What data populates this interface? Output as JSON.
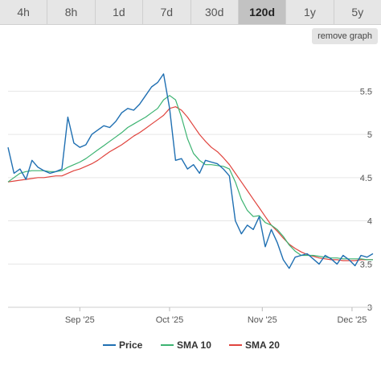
{
  "ranges": {
    "tabs": [
      {
        "label": "4h",
        "active": false
      },
      {
        "label": "8h",
        "active": false
      },
      {
        "label": "1d",
        "active": false
      },
      {
        "label": "7d",
        "active": false
      },
      {
        "label": "30d",
        "active": false
      },
      {
        "label": "120d",
        "active": true
      },
      {
        "label": "1y",
        "active": false
      },
      {
        "label": "5y",
        "active": false
      }
    ]
  },
  "remove_graph_label": "remove graph",
  "chart_data": {
    "type": "line",
    "title": "",
    "xlabel": "",
    "ylabel": "",
    "x_ticks": [
      {
        "label": "Sep '25",
        "value": "2025-09-01"
      },
      {
        "label": "Oct '25",
        "value": "2025-10-01"
      },
      {
        "label": "Nov '25",
        "value": "2025-11-01"
      },
      {
        "label": "Dec '25",
        "value": "2025-12-01"
      }
    ],
    "xlim": [
      "2025-08-08",
      "2025-12-08"
    ],
    "y_ticks": [
      "3",
      "3.5",
      "4",
      "4.5",
      "5",
      "5.5"
    ],
    "ylim": [
      3,
      5.95
    ],
    "grid": true,
    "legend_position": "bottom",
    "x": [
      "2025-08-08",
      "2025-08-10",
      "2025-08-12",
      "2025-08-14",
      "2025-08-16",
      "2025-08-18",
      "2025-08-20",
      "2025-08-22",
      "2025-08-24",
      "2025-08-26",
      "2025-08-28",
      "2025-08-30",
      "2025-09-01",
      "2025-09-03",
      "2025-09-05",
      "2025-09-07",
      "2025-09-09",
      "2025-09-11",
      "2025-09-13",
      "2025-09-15",
      "2025-09-17",
      "2025-09-19",
      "2025-09-21",
      "2025-09-23",
      "2025-09-25",
      "2025-09-27",
      "2025-09-29",
      "2025-10-01",
      "2025-10-03",
      "2025-10-05",
      "2025-10-07",
      "2025-10-09",
      "2025-10-11",
      "2025-10-13",
      "2025-10-15",
      "2025-10-17",
      "2025-10-19",
      "2025-10-21",
      "2025-10-23",
      "2025-10-25",
      "2025-10-27",
      "2025-10-29",
      "2025-10-31",
      "2025-11-02",
      "2025-11-04",
      "2025-11-06",
      "2025-11-08",
      "2025-11-10",
      "2025-11-12",
      "2025-11-14",
      "2025-11-16",
      "2025-11-18",
      "2025-11-20",
      "2025-11-22",
      "2025-11-24",
      "2025-11-26",
      "2025-11-28",
      "2025-11-30",
      "2025-12-02",
      "2025-12-04",
      "2025-12-06",
      "2025-12-08"
    ],
    "series": [
      {
        "name": "Price",
        "color": "#1f6fb2",
        "values": [
          4.85,
          4.55,
          4.6,
          4.48,
          4.7,
          4.62,
          4.58,
          4.55,
          4.57,
          4.6,
          5.2,
          4.9,
          4.85,
          4.88,
          5.0,
          5.05,
          5.1,
          5.08,
          5.15,
          5.25,
          5.3,
          5.28,
          5.35,
          5.45,
          5.55,
          5.6,
          5.7,
          5.3,
          4.7,
          4.72,
          4.6,
          4.65,
          4.55,
          4.7,
          4.68,
          4.66,
          4.6,
          4.52,
          4.0,
          3.85,
          3.95,
          3.9,
          4.05,
          3.7,
          3.9,
          3.75,
          3.55,
          3.45,
          3.58,
          3.6,
          3.62,
          3.56,
          3.5,
          3.6,
          3.56,
          3.5,
          3.6,
          3.55,
          3.48,
          3.6,
          3.58,
          3.62
        ]
      },
      {
        "name": "SMA 10",
        "color": "#3cb371",
        "values": [
          4.45,
          4.5,
          4.55,
          4.57,
          4.58,
          4.58,
          4.58,
          4.57,
          4.57,
          4.58,
          4.62,
          4.65,
          4.68,
          4.72,
          4.77,
          4.82,
          4.87,
          4.92,
          4.97,
          5.02,
          5.08,
          5.12,
          5.16,
          5.2,
          5.25,
          5.3,
          5.4,
          5.45,
          5.4,
          5.2,
          4.95,
          4.78,
          4.7,
          4.65,
          4.65,
          4.64,
          4.63,
          4.6,
          4.45,
          4.25,
          4.12,
          4.05,
          4.06,
          3.98,
          3.95,
          3.9,
          3.82,
          3.72,
          3.65,
          3.6,
          3.6,
          3.6,
          3.59,
          3.58,
          3.57,
          3.57,
          3.56,
          3.56,
          3.56,
          3.56,
          3.55,
          3.55
        ]
      },
      {
        "name": "SMA 20",
        "color": "#e0443e",
        "values": [
          4.45,
          4.46,
          4.47,
          4.48,
          4.49,
          4.5,
          4.5,
          4.51,
          4.52,
          4.52,
          4.55,
          4.58,
          4.6,
          4.63,
          4.66,
          4.7,
          4.75,
          4.8,
          4.84,
          4.88,
          4.93,
          4.98,
          5.02,
          5.07,
          5.12,
          5.17,
          5.22,
          5.3,
          5.32,
          5.28,
          5.2,
          5.1,
          5.0,
          4.92,
          4.85,
          4.8,
          4.73,
          4.65,
          4.55,
          4.45,
          4.35,
          4.25,
          4.15,
          4.05,
          3.95,
          3.88,
          3.8,
          3.73,
          3.68,
          3.64,
          3.61,
          3.59,
          3.57,
          3.56,
          3.55,
          3.55,
          3.54,
          3.54,
          3.54,
          3.55,
          3.55,
          3.55
        ]
      }
    ]
  }
}
